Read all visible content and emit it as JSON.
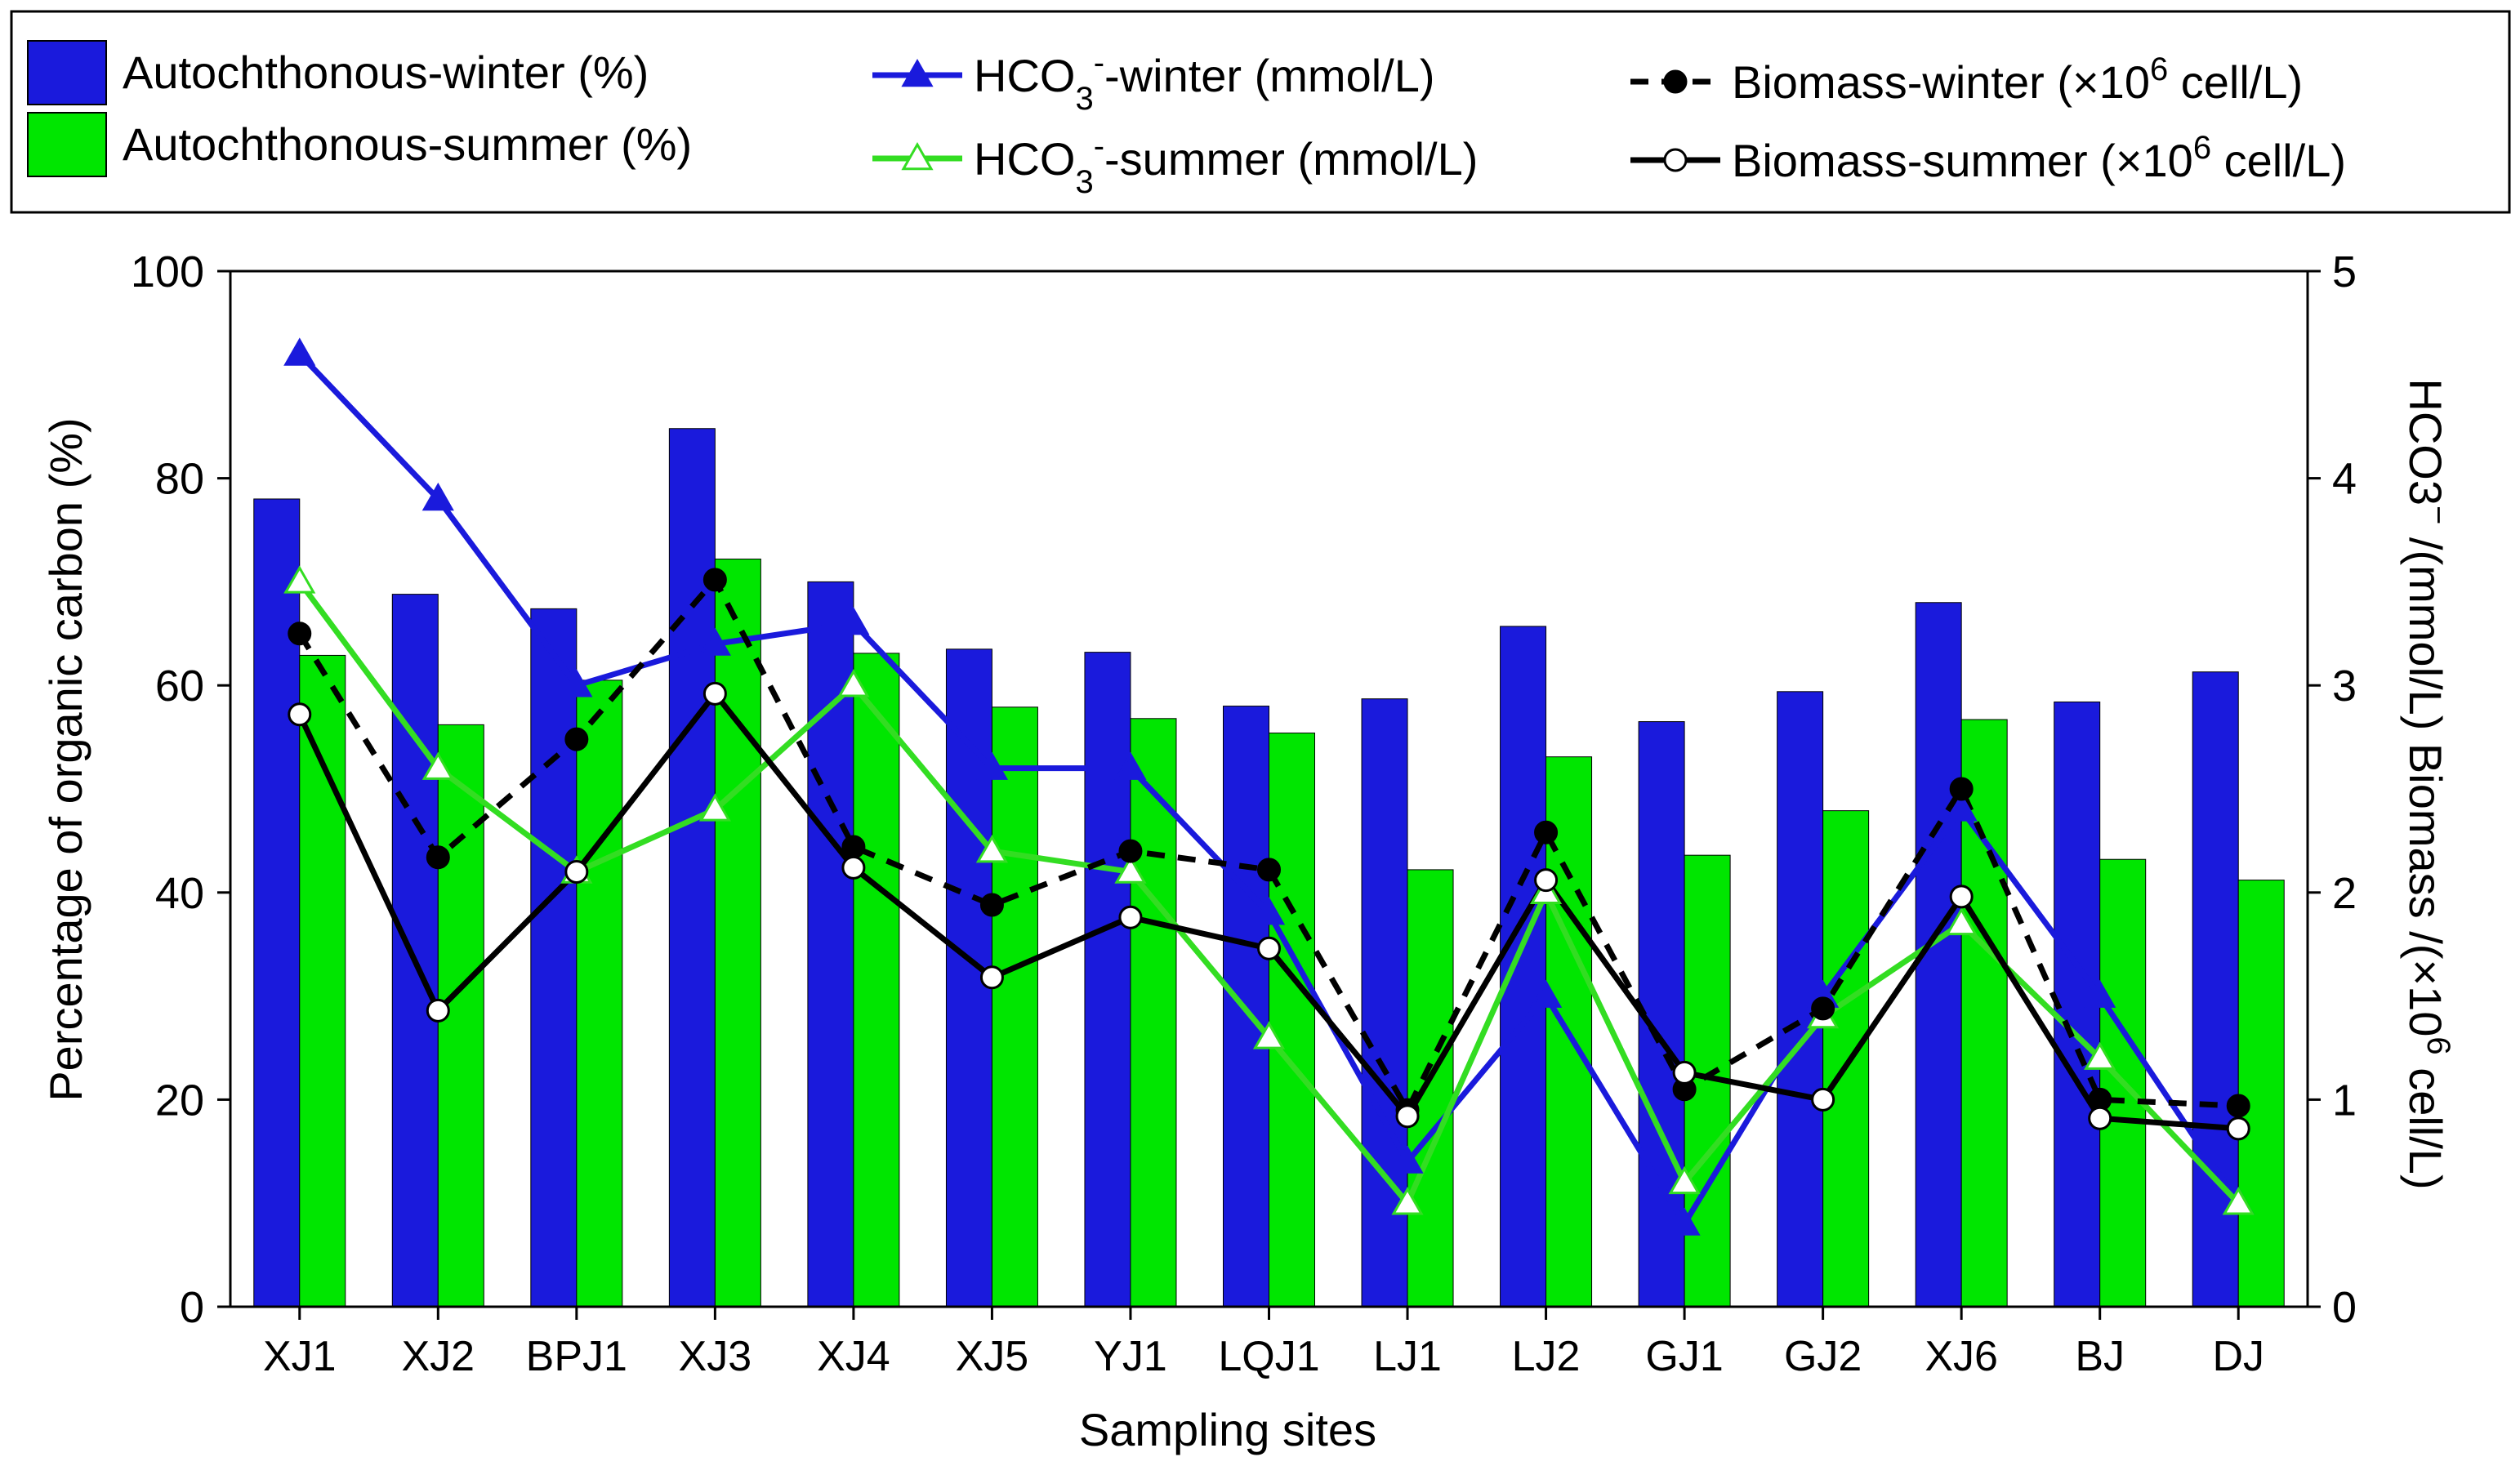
{
  "chart_data": {
    "type": "bar",
    "xlabel": "Sampling sites",
    "ylabel_left": "Percentage of organic carbon (%)",
    "ylabel_right": "HCO3⁻ /(mmol/L)   Biomass /(×10⁶ cell/L)",
    "ylim_left": [
      0,
      100
    ],
    "ylim_right": [
      0,
      5
    ],
    "yticks_left": [
      "0",
      "20",
      "40",
      "60",
      "80",
      "100"
    ],
    "yticks_right": [
      "0",
      "1",
      "2",
      "3",
      "4",
      "5"
    ],
    "categories": [
      "XJ1",
      "XJ2",
      "BPJ1",
      "XJ3",
      "XJ4",
      "XJ5",
      "YJ1",
      "LQJ1",
      "LJ1",
      "LJ2",
      "GJ1",
      "GJ2",
      "XJ6",
      "BJ",
      "DJ"
    ],
    "bar_series": [
      {
        "name": "Autochthonous-winter (%)",
        "color": "#1a1adc",
        "values": [
          78.0,
          68.8,
          67.4,
          84.8,
          70.0,
          63.5,
          63.2,
          58.0,
          58.7,
          65.7,
          56.5,
          59.4,
          68.0,
          58.4,
          61.3
        ]
      },
      {
        "name": "Autochthonous-summer (%)",
        "color": "#00e600",
        "values": [
          62.9,
          56.2,
          60.5,
          72.2,
          63.1,
          57.9,
          56.8,
          55.4,
          42.2,
          53.1,
          43.6,
          47.9,
          56.7,
          43.2,
          41.2
        ]
      }
    ],
    "line_series": [
      {
        "name": "HCO3⁻-winter (mmol/L)",
        "color": "#1a1adc",
        "marker": "triangle-filled",
        "dash": false,
        "values": [
          4.6,
          3.9,
          3.0,
          3.2,
          3.3,
          2.6,
          2.6,
          1.9,
          0.7,
          1.5,
          0.4,
          1.5,
          2.4,
          1.5,
          0.5
        ]
      },
      {
        "name": "HCO3⁻-summer (mmol/L)",
        "color": "#33dd22",
        "marker": "triangle-open",
        "dash": false,
        "values": [
          3.5,
          2.6,
          2.1,
          2.4,
          3.0,
          2.2,
          2.1,
          1.3,
          0.5,
          2.0,
          0.6,
          1.4,
          1.85,
          1.2,
          0.5
        ]
      },
      {
        "name": "Biomass-winter (×10⁶ cell/L)",
        "color": "#000000",
        "marker": "circle-filled",
        "dash": true,
        "values": [
          3.25,
          2.17,
          2.74,
          3.51,
          2.22,
          1.94,
          2.2,
          2.11,
          0.95,
          2.29,
          1.05,
          1.44,
          2.5,
          1.0,
          0.97
        ]
      },
      {
        "name": "Biomass-summer (×10⁶ cell/L)",
        "color": "#000000",
        "marker": "circle-open",
        "dash": false,
        "values": [
          2.86,
          1.43,
          2.1,
          2.96,
          2.12,
          1.59,
          1.88,
          1.73,
          0.92,
          2.06,
          1.13,
          1.0,
          1.98,
          0.91,
          0.86
        ]
      }
    ],
    "legend": {
      "position": "top",
      "entries": [
        {
          "label": "Autochthonous-winter (%)",
          "kind": "bar",
          "color": "#1a1adc"
        },
        {
          "label": "Autochthonous-summer (%)",
          "kind": "bar",
          "color": "#00e600"
        },
        {
          "label_main": "HCO",
          "label_sub": "3",
          "label_sup": "-",
          "label_rest": "-winter (mmol/L)",
          "kind": "line",
          "color": "#1a1adc",
          "marker": "triangle-filled",
          "dash": false
        },
        {
          "label_main": "HCO",
          "label_sub": "3",
          "label_sup": "-",
          "label_rest": "-summer (mmol/L)",
          "kind": "line",
          "color": "#33dd22",
          "marker": "triangle-open",
          "dash": false
        },
        {
          "label_main": "Biomass-winter (×10",
          "label_sup": "6",
          "label_rest": " cell/L)",
          "kind": "line",
          "color": "#000000",
          "marker": "circle-filled",
          "dash": true
        },
        {
          "label_main": "Biomass-summer (×10",
          "label_sup": "6",
          "label_rest": " cell/L)",
          "kind": "line",
          "color": "#000000",
          "marker": "circle-open",
          "dash": false
        }
      ]
    }
  }
}
